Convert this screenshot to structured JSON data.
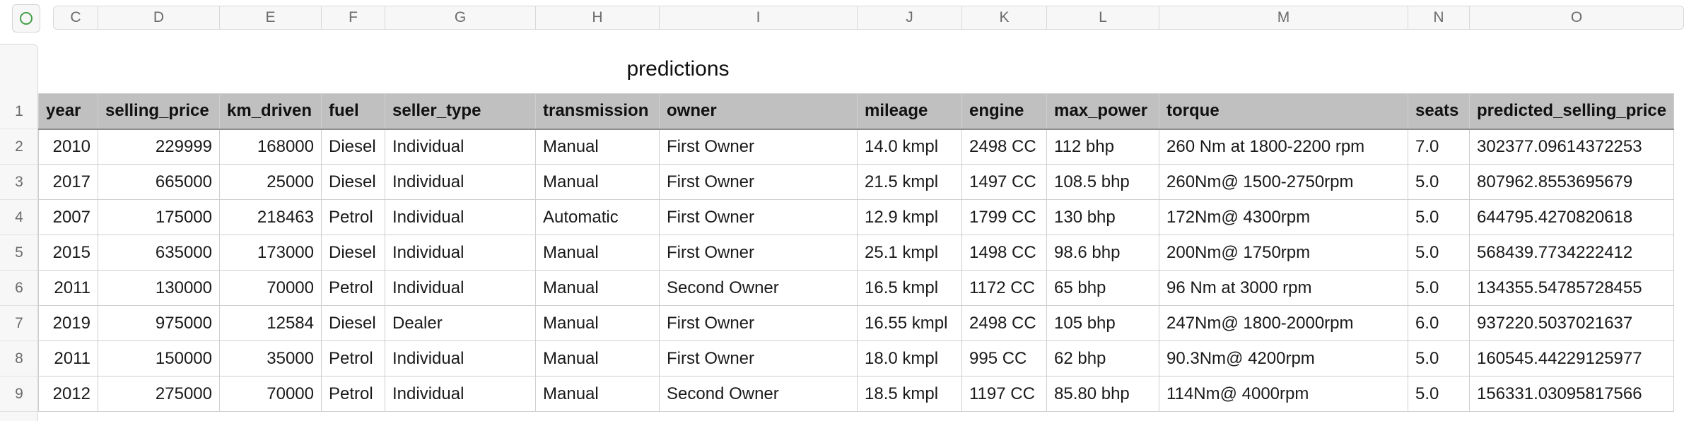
{
  "column_letters": [
    "C",
    "D",
    "E",
    "F",
    "G",
    "H",
    "I",
    "J",
    "K",
    "L",
    "M",
    "N",
    "O"
  ],
  "row_numbers": [
    "1",
    "2",
    "3",
    "4",
    "5",
    "6",
    "7",
    "8",
    "9"
  ],
  "sheet_title": "predictions",
  "table": {
    "headers": [
      "year",
      "selling_price",
      "km_driven",
      "fuel",
      "seller_type",
      "transmission",
      "owner",
      "mileage",
      "engine",
      "max_power",
      "torque",
      "seats",
      "predicted_selling_price"
    ],
    "rows": [
      [
        "2010",
        "229999",
        "168000",
        "Diesel",
        "Individual",
        "Manual",
        "First Owner",
        "14.0 kmpl",
        "2498 CC",
        "112 bhp",
        "260 Nm at 1800-2200 rpm",
        "7.0",
        "302377.09614372253"
      ],
      [
        "2017",
        "665000",
        "25000",
        "Diesel",
        "Individual",
        "Manual",
        "First Owner",
        "21.5 kmpl",
        "1497 CC",
        "108.5 bhp",
        "260Nm@ 1500-2750rpm",
        "5.0",
        "807962.8553695679"
      ],
      [
        "2007",
        "175000",
        "218463",
        "Petrol",
        "Individual",
        "Automatic",
        "First Owner",
        "12.9 kmpl",
        "1799 CC",
        "130 bhp",
        "172Nm@ 4300rpm",
        "5.0",
        "644795.4270820618"
      ],
      [
        "2015",
        "635000",
        "173000",
        "Diesel",
        "Individual",
        "Manual",
        "First Owner",
        "25.1 kmpl",
        "1498 CC",
        "98.6 bhp",
        "200Nm@ 1750rpm",
        "5.0",
        "568439.7734222412"
      ],
      [
        "2011",
        "130000",
        "70000",
        "Petrol",
        "Individual",
        "Manual",
        "Second Owner",
        "16.5 kmpl",
        "1172 CC",
        "65 bhp",
        "96  Nm at 3000  rpm",
        "5.0",
        "134355.54785728455"
      ],
      [
        "2019",
        "975000",
        "12584",
        "Diesel",
        "Dealer",
        "Manual",
        "First Owner",
        "16.55 kmpl",
        "2498 CC",
        "105 bhp",
        "247Nm@ 1800-2000rpm",
        "6.0",
        "937220.5037021637"
      ],
      [
        "2011",
        "150000",
        "35000",
        "Petrol",
        "Individual",
        "Manual",
        "First Owner",
        "18.0 kmpl",
        "995 CC",
        "62 bhp",
        "90.3Nm@ 4200rpm",
        "5.0",
        "160545.44229125977"
      ],
      [
        "2012",
        "275000",
        "70000",
        "Petrol",
        "Individual",
        "Manual",
        "Second Owner",
        "18.5 kmpl",
        "1197 CC",
        "85.80 bhp",
        "114Nm@ 4000rpm",
        "5.0",
        "156331.03095817566"
      ]
    ]
  },
  "colors": {
    "header_fill": "#c0c0c0",
    "accent": "#43a047"
  }
}
